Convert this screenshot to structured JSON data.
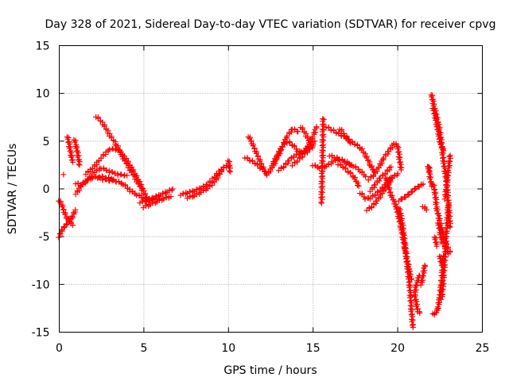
{
  "chart_data": {
    "type": "scatter",
    "title": "Day 328 of 2021, Sidereal Day-to-day VTEC variation (SDTVAR) for receiver cpvg",
    "xlabel": "GPS time / hours",
    "ylabel": "SDTVAR / TECUs",
    "xlim": [
      0,
      25
    ],
    "ylim": [
      -15,
      15
    ],
    "xticks": [
      "0",
      "5",
      "10",
      "15",
      "20",
      "25"
    ],
    "yticks": [
      "-15",
      "-10",
      "-5",
      "0",
      "5",
      "10",
      "15"
    ],
    "grid": true,
    "marker": "plus",
    "color": "#ff0000",
    "series": [
      {
        "name": "tr-a",
        "x": [
          0.0,
          0.15,
          0.3,
          0.45,
          0.6,
          0.8
        ],
        "y": [
          -1.2,
          -1.6,
          -2.4,
          -3.0,
          -3.4,
          -3.8
        ]
      },
      {
        "name": "tr-b",
        "x": [
          0.0,
          0.1,
          0.2,
          0.35,
          0.5,
          0.65,
          0.8,
          0.95
        ],
        "y": [
          -5.0,
          -4.6,
          -4.2,
          -3.9,
          -3.6,
          -3.3,
          -2.8,
          -2.2
        ]
      },
      {
        "name": "tr-c",
        "x": [
          0.5,
          0.6,
          0.7,
          0.8
        ],
        "y": [
          5.5,
          4.5,
          3.6,
          2.8
        ]
      },
      {
        "name": "tr-d",
        "x": [
          0.9,
          1.0,
          1.1,
          1.2
        ],
        "y": [
          5.2,
          4.5,
          3.6,
          2.5
        ]
      },
      {
        "name": "tr-e",
        "x": [
          0.25
        ],
        "y": [
          1.5
        ]
      },
      {
        "name": "tr-f",
        "x": [
          1.0,
          1.3,
          1.7,
          2.1,
          2.5,
          3.0,
          3.5,
          4.0
        ],
        "y": [
          -0.5,
          0.3,
          1.0,
          1.8,
          2.2,
          1.8,
          1.5,
          1.4
        ]
      },
      {
        "name": "tr-g",
        "x": [
          1.0,
          1.3,
          1.6,
          2.0,
          2.4,
          2.8,
          3.2
        ],
        "y": [
          0.6,
          0.4,
          0.9,
          1.2,
          1.3,
          1.2,
          1.0
        ]
      },
      {
        "name": "tr-h",
        "x": [
          2.2,
          2.6,
          3.0,
          3.4,
          3.8,
          4.2,
          4.6,
          5.0,
          5.3
        ],
        "y": [
          7.6,
          6.8,
          5.6,
          4.6,
          3.2,
          2.0,
          0.8,
          -0.4,
          -1.2
        ]
      },
      {
        "name": "tr-i",
        "x": [
          1.6,
          2.0,
          2.5,
          3.0,
          3.5,
          4.0,
          4.5,
          5.0
        ],
        "y": [
          1.6,
          2.2,
          3.3,
          4.2,
          4.1,
          3.0,
          1.5,
          -0.2
        ]
      },
      {
        "name": "tr-j",
        "x": [
          2.3,
          2.6,
          3.0,
          3.4,
          3.8,
          4.2,
          4.6,
          5.0,
          5.4,
          5.8
        ],
        "y": [
          1.2,
          1.0,
          0.9,
          0.8,
          0.5,
          -0.2,
          -0.6,
          -1.0,
          -1.2,
          -1.0
        ]
      },
      {
        "name": "tr-k",
        "x": [
          4.8,
          5.2,
          5.6,
          6.0,
          6.4,
          6.7
        ],
        "y": [
          -1.4,
          -1.2,
          -0.9,
          -0.6,
          -0.3,
          0.0
        ]
      },
      {
        "name": "tr-l",
        "x": [
          5.0,
          5.4,
          5.8,
          6.2,
          6.6
        ],
        "y": [
          -1.9,
          -1.6,
          -1.3,
          -1.0,
          -0.8
        ]
      },
      {
        "name": "tr-m",
        "x": [
          7.2,
          7.6,
          8.0,
          8.4,
          8.8,
          9.2,
          9.6,
          10.0
        ],
        "y": [
          -0.6,
          -0.4,
          -0.2,
          0.1,
          0.5,
          1.3,
          2.1,
          2.5
        ]
      },
      {
        "name": "tr-n",
        "x": [
          7.6,
          8.0,
          8.4,
          8.8,
          9.2,
          9.6
        ],
        "y": [
          -0.9,
          -0.7,
          -0.3,
          0.1,
          0.8,
          1.9
        ]
      },
      {
        "name": "tr-o",
        "x": [
          10.0,
          10.1
        ],
        "y": [
          3.0,
          1.8
        ]
      },
      {
        "name": "tr-p",
        "x": [
          11.2,
          11.4,
          11.6,
          11.8,
          12.0,
          12.2
        ],
        "y": [
          5.5,
          4.8,
          4.0,
          3.2,
          2.4,
          1.6
        ]
      },
      {
        "name": "tr-q",
        "x": [
          11.0,
          11.3,
          11.6,
          11.9,
          12.2
        ],
        "y": [
          3.3,
          3.0,
          2.7,
          2.2,
          1.8
        ]
      },
      {
        "name": "tr-r",
        "x": [
          12.3,
          12.6,
          12.9,
          13.2,
          13.5,
          13.8,
          14.1
        ],
        "y": [
          1.5,
          2.3,
          3.3,
          4.5,
          5.6,
          6.3,
          6.0
        ]
      },
      {
        "name": "tr-s",
        "x": [
          12.6,
          12.9,
          13.2,
          13.5,
          13.8,
          14.1,
          14.4,
          14.7,
          15.0,
          15.2
        ],
        "y": [
          2.5,
          3.6,
          4.5,
          5.0,
          4.6,
          4.0,
          3.7,
          4.5,
          5.5,
          6.5
        ]
      },
      {
        "name": "tr-t",
        "x": [
          13.0,
          13.3,
          13.6,
          13.9,
          14.2,
          14.5,
          14.8,
          15.1
        ],
        "y": [
          2.0,
          2.4,
          3.0,
          3.5,
          3.7,
          4.0,
          4.4,
          5.0
        ]
      },
      {
        "name": "tr-u",
        "x": [
          13.8,
          14.1,
          14.4,
          14.7,
          15.0
        ],
        "y": [
          2.5,
          3.0,
          3.5,
          4.0,
          4.5
        ]
      },
      {
        "name": "tr-v",
        "x": [
          14.3,
          14.6,
          14.9
        ],
        "y": [
          6.5,
          5.6,
          4.6
        ]
      },
      {
        "name": "tr-w",
        "x": [
          15.0,
          15.4,
          15.8,
          16.2,
          16.6,
          17.0,
          17.4,
          17.8,
          18.1
        ],
        "y": [
          2.5,
          2.2,
          2.4,
          2.9,
          3.1,
          2.7,
          2.4,
          1.9,
          1.3
        ]
      },
      {
        "name": "tr-x",
        "x": [
          15.8,
          16.1,
          16.4,
          16.7,
          17.0,
          17.2
        ],
        "y": [
          6.5,
          6.2,
          5.9,
          5.6,
          5.3,
          4.8
        ]
      },
      {
        "name": "tr-y",
        "x": [
          16.0,
          16.3,
          16.6,
          16.9,
          17.2
        ],
        "y": [
          3.5,
          3.3,
          3.1,
          2.9,
          2.5
        ]
      },
      {
        "name": "tr-z",
        "x": [
          16.5,
          16.8,
          17.1,
          17.4,
          17.7
        ],
        "y": [
          2.6,
          2.3,
          1.8,
          1.3,
          0.3
        ]
      },
      {
        "name": "tr-aa",
        "x": [
          16.6,
          16.9,
          17.2,
          17.5,
          17.8,
          18.1,
          18.4,
          18.6
        ],
        "y": [
          6.3,
          5.6,
          5.0,
          4.7,
          4.3,
          3.5,
          2.5,
          1.8
        ]
      },
      {
        "name": "tr-ab",
        "x": [
          15.6,
          15.5
        ],
        "y": [
          7.4,
          -1.5
        ]
      },
      {
        "name": "tr-ac",
        "x": [
          18.3,
          18.6,
          18.9,
          19.2,
          19.5,
          19.8,
          20.0,
          20.2
        ],
        "y": [
          1.0,
          1.5,
          2.3,
          3.3,
          4.0,
          4.8,
          4.5,
          2.0
        ]
      },
      {
        "name": "tr-ad",
        "x": [
          18.4,
          18.7,
          19.0,
          19.3,
          19.6
        ],
        "y": [
          -0.2,
          0.5,
          1.2,
          1.7,
          2.3
        ]
      },
      {
        "name": "tr-ae",
        "x": [
          18.2,
          18.5,
          18.8,
          19.1,
          19.4,
          19.7,
          20.0
        ],
        "y": [
          -2.2,
          -1.8,
          -1.2,
          -0.4,
          0.4,
          1.2,
          1.6
        ]
      },
      {
        "name": "tr-af",
        "x": [
          17.8,
          18.1,
          18.4,
          18.7,
          19.0,
          19.3,
          19.6
        ],
        "y": [
          -0.4,
          -1.0,
          -1.0,
          -0.5,
          -0.1,
          0.5,
          1.2
        ]
      },
      {
        "name": "tr-ag",
        "x": [
          19.3,
          19.6,
          19.9,
          20.2,
          20.4,
          20.6,
          20.8
        ],
        "y": [
          1.2,
          -0.6,
          -1.8,
          -4.0,
          -6.0,
          -7.8,
          -9.5
        ]
      },
      {
        "name": "tr-ah",
        "x": [
          20.1,
          20.3,
          20.5,
          20.7,
          20.8,
          20.9
        ],
        "y": [
          -2.0,
          -4.0,
          -7.0,
          -10.0,
          -12.5,
          -14.5
        ]
      },
      {
        "name": "tr-ai",
        "x": [
          20.1,
          20.3,
          20.5,
          20.7,
          20.9,
          21.1,
          21.3,
          21.5
        ],
        "y": [
          -1.2,
          -1.0,
          -0.8,
          -0.5,
          -0.2,
          0.1,
          0.3,
          0.5
        ]
      },
      {
        "name": "tr-aj",
        "x": [
          21.3,
          21.1,
          21.0,
          21.1,
          21.2,
          21.3
        ],
        "y": [
          -9.0,
          -10.0,
          -11.0,
          -12.0,
          -12.8,
          -13.0
        ]
      },
      {
        "name": "tr-ak",
        "x": [
          21.4,
          21.5,
          21.6
        ],
        "y": [
          -10.0,
          -9.0,
          -8.0
        ]
      },
      {
        "name": "tr-al",
        "x": [
          21.9,
          21.8,
          22.0
        ],
        "y": [
          2.0,
          2.4,
          0.3
        ]
      },
      {
        "name": "tr-am",
        "x": [
          21.5,
          21.7
        ],
        "y": [
          -1.8,
          -2.2
        ]
      },
      {
        "name": "tr-an",
        "x": [
          22.0,
          22.1,
          22.3,
          22.5,
          22.7,
          22.9,
          23.1
        ],
        "y": [
          9.9,
          9.0,
          7.6,
          6.0,
          3.0,
          0.5,
          -4.0
        ]
      },
      {
        "name": "tr-ao",
        "x": [
          22.1,
          22.3,
          22.5,
          22.7
        ],
        "y": [
          8.5,
          6.8,
          5.0,
          4.0
        ]
      },
      {
        "name": "tr-ap",
        "x": [
          22.1,
          22.2,
          22.3,
          22.5,
          22.7,
          22.9,
          23.1
        ],
        "y": [
          0.5,
          -0.3,
          -2.0,
          -3.5,
          -5.0,
          -6.0,
          -6.6
        ]
      },
      {
        "name": "tr-aq",
        "x": [
          22.1,
          22.2,
          22.3,
          22.4,
          22.5,
          22.6,
          22.7
        ],
        "y": [
          -13.0,
          -13.1,
          -12.9,
          -12.3,
          -11.0,
          -9.5,
          -7.0
        ]
      },
      {
        "name": "tr-ar",
        "x": [
          22.4,
          22.6,
          22.8,
          23.0
        ],
        "y": [
          -3.5,
          -5.5,
          -6.0,
          -6.8
        ]
      },
      {
        "name": "tr-as",
        "x": [
          22.6,
          22.7,
          22.8,
          22.9,
          23.0
        ],
        "y": [
          -11.5,
          -9.5,
          -7.0,
          -4.0,
          -1.5
        ]
      },
      {
        "name": "tr-at",
        "x": [
          22.8,
          22.9,
          23.0,
          23.1
        ],
        "y": [
          -1.0,
          0.5,
          2.0,
          3.5
        ]
      },
      {
        "name": "tr-au",
        "x": [
          22.2,
          22.3
        ],
        "y": [
          -5.0,
          -6.0
        ]
      },
      {
        "name": "tr-av",
        "x": [
          22.5,
          22.6
        ],
        "y": [
          -7.0,
          -8.0
        ]
      }
    ]
  }
}
